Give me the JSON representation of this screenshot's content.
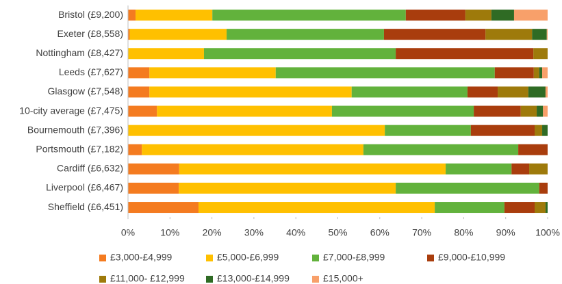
{
  "chart_data": {
    "type": "stacked-barh",
    "categories": [
      "Bristol (£9,200)",
      "Exeter (£8,558)",
      "Nottingham (£8,427)",
      "Leeds (£7,627)",
      "Glasgow (£7,548)",
      "10-city average (£7,475)",
      "Bournemouth (£7,396)",
      "Portsmouth (£7,182)",
      "Cardiff (£6,632)",
      "Liverpool (£6,467)",
      "Sheffield (£6,451)"
    ],
    "series": [
      {
        "name": "£3,000-£4,999",
        "color": "#f47b20",
        "values": [
          1.8,
          0.4,
          0,
          5.1,
          5.1,
          6.9,
          0,
          3.3,
          12.2,
          12.1,
          16.8
        ]
      },
      {
        "name": "£5,000-£6,999",
        "color": "#ffc000",
        "values": [
          18.3,
          23.1,
          18.1,
          30.1,
          48.2,
          41.7,
          61.2,
          52.8,
          63.5,
          51.7,
          56.3
        ]
      },
      {
        "name": "£7,000-£8,999",
        "color": "#62b23c",
        "values": [
          46.1,
          37.5,
          45.7,
          52.2,
          27.6,
          33.8,
          20.5,
          36.9,
          15.7,
          34.2,
          16.6
        ]
      },
      {
        "name": "£9,000-£10,999",
        "color": "#a93d0d",
        "values": [
          14.2,
          24.2,
          32.8,
          9.3,
          7.2,
          11.2,
          15.2,
          7.0,
          4.2,
          2.0,
          7.2
        ]
      },
      {
        "name": "£11,000- £12,999",
        "color": "#9e7a0b",
        "values": [
          6.2,
          11.1,
          3.4,
          1.3,
          7.3,
          3.8,
          1.8,
          0,
          4.4,
          0,
          2.6
        ]
      },
      {
        "name": "£13,000-£14,999",
        "color": "#2f6b24",
        "values": [
          5.4,
          3.5,
          0,
          0.7,
          4.1,
          1.5,
          1.3,
          0,
          0,
          0,
          0.5
        ]
      },
      {
        "name": "£15,000+",
        "color": "#f8a06a",
        "values": [
          8.0,
          0.2,
          0,
          1.3,
          0.5,
          1.1,
          0,
          0,
          0,
          0,
          0
        ]
      }
    ],
    "xlim": [
      0,
      100
    ],
    "xticks": [
      {
        "value": 0,
        "label": "0%"
      },
      {
        "value": 10,
        "label": "10%"
      },
      {
        "value": 20,
        "label": "20%"
      },
      {
        "value": 30,
        "label": "30%"
      },
      {
        "value": 40,
        "label": "40%"
      },
      {
        "value": 50,
        "label": "50%"
      },
      {
        "value": 60,
        "label": "60%"
      },
      {
        "value": 70,
        "label": "70%"
      },
      {
        "value": 80,
        "label": "80%"
      },
      {
        "value": 90,
        "label": "90%"
      },
      {
        "value": 100,
        "label": "100%"
      }
    ]
  }
}
